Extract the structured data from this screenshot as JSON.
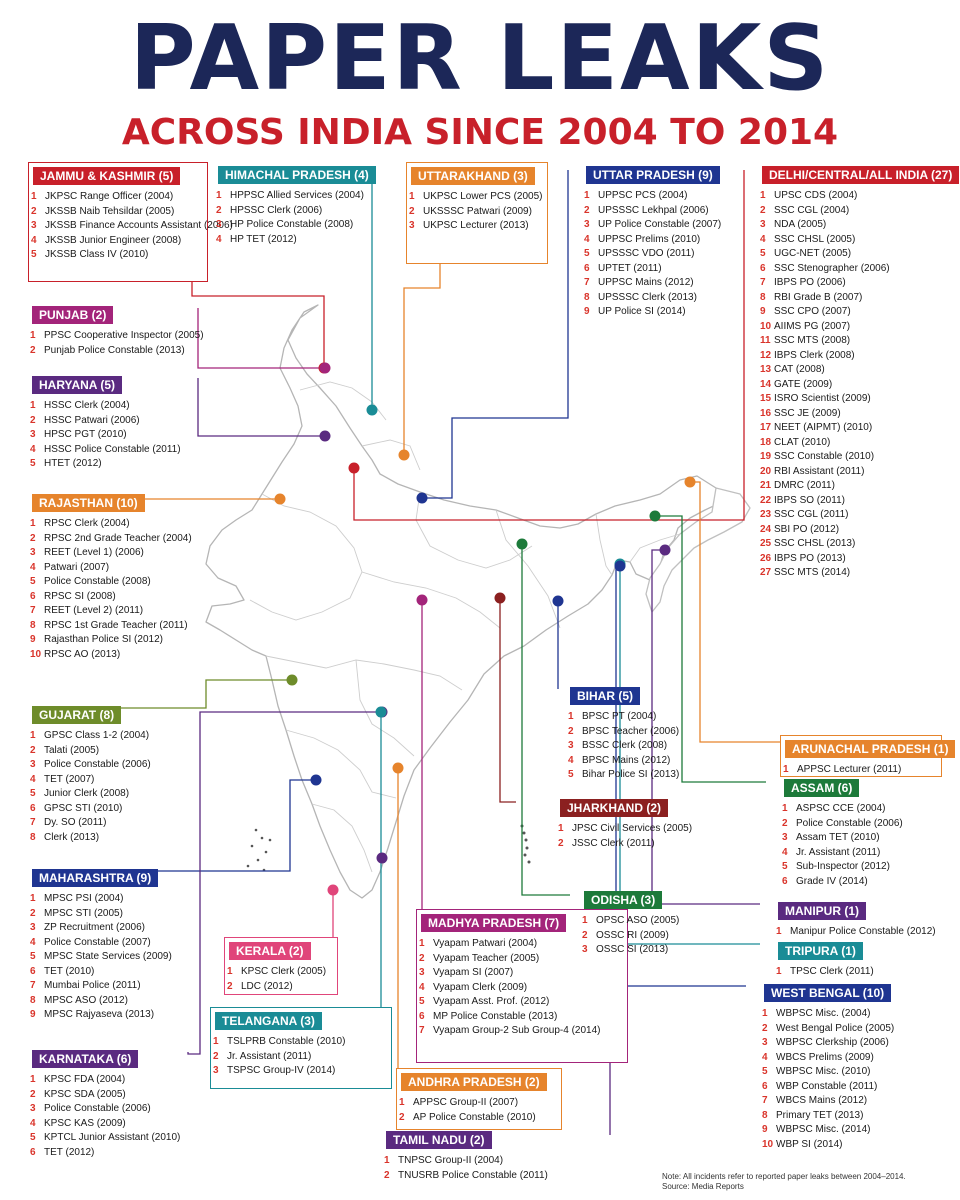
{
  "title": "PAPER LEAKS",
  "subtitle": "ACROSS INDIA SINCE 2004 TO 2014",
  "note": "Note: All incidents refer to reported paper leaks between 2004–2014.",
  "source": "Source: Media Reports",
  "colors": {
    "title": "#1c2758",
    "subtitle": "#c8202a",
    "map_outline": "#b8b8b8",
    "number": "#d9342b"
  },
  "states": [
    {
      "key": "jk",
      "header": "JAMMU & KASHMIR (5)",
      "color": "#c8202a",
      "items": [
        "JKPSC Range Officer (2004)",
        "JKSSB Naib Tehsildar (2005)",
        "JKSSB Finance Accounts Assistant (2006)",
        "JKSSB Junior Engineer (2008)",
        "JKSSB Class IV (2010)"
      ]
    },
    {
      "key": "hp",
      "header": "HIMACHAL PRADESH (4)",
      "color": "#1a8c96",
      "items": [
        "HPPSC Allied Services (2004)",
        "HPSSC Clerk (2006)",
        "HP Police Constable (2008)",
        "HP TET (2012)"
      ]
    },
    {
      "key": "uk",
      "header": "UTTARAKHAND (3)",
      "color": "#e6842c",
      "items": [
        "UKPSC Lower PCS (2005)",
        "UKSSSC Patwari (2009)",
        "UKPSC Lecturer (2013)"
      ]
    },
    {
      "key": "up",
      "header": "UTTAR PRADESH (9)",
      "color": "#1f3591",
      "items": [
        "UPPSC PCS (2004)",
        "UPSSSC Lekhpal (2006)",
        "UP Police Constable (2007)",
        "UPPSC Prelims (2010)",
        "UPSSSC VDO (2011)",
        "UPTET (2011)",
        "UPPSC Mains (2012)",
        "UPSSSC Clerk (2013)",
        "UP Police SI (2014)"
      ]
    },
    {
      "key": "delhi",
      "header": "DELHI/CENTRAL/ALL INDIA (27)",
      "color": "#c8202a",
      "items": [
        "UPSC CDS (2004)",
        "SSC CGL (2004)",
        "NDA (2005)",
        "SSC CHSL (2005)",
        "UGC-NET (2005)",
        "SSC Stenographer (2006)",
        "IBPS PO (2006)",
        "RBI Grade B (2007)",
        "SSC CPO (2007)",
        "AIIMS PG (2007)",
        "SSC MTS (2008)",
        "IBPS Clerk (2008)",
        "CAT (2008)",
        "GATE (2009)",
        "ISRO Scientist (2009)",
        "SSC JE (2009)",
        "NEET (AIPMT) (2010)",
        "CLAT (2010)",
        "SSC Constable (2010)",
        "RBI Assistant (2011)",
        "DMRC (2011)",
        "IBPS SO (2011)",
        "SSC CGL (2011)",
        "SBI PO (2012)",
        "SSC CHSL (2013)",
        "IBPS PO (2013)",
        "SSC MTS (2014)"
      ]
    },
    {
      "key": "punjab",
      "header": "PUNJAB (2)",
      "color": "#a3247a",
      "items": [
        "PPSC Cooperative Inspector (2005)",
        "Punjab Police Constable (2013)"
      ]
    },
    {
      "key": "haryana",
      "header": "HARYANA (5)",
      "color": "#5a2a80",
      "items": [
        "HSSC Clerk (2004)",
        "HSSC Patwari (2006)",
        "HPSC PGT (2010)",
        "HSSC Police Constable (2011)",
        "HTET (2012)"
      ]
    },
    {
      "key": "rajasthan",
      "header": "RAJASTHAN (10)",
      "color": "#e6842c",
      "items": [
        "RPSC Clerk (2004)",
        "RPSC 2nd Grade Teacher (2004)",
        "REET (Level 1) (2006)",
        "Patwari (2007)",
        "Police Constable (2008)",
        "RPSC SI (2008)",
        "REET (Level 2) (2011)",
        "RPSC 1st Grade Teacher (2011)",
        "Rajasthan Police SI (2012)",
        "RPSC AO (2013)"
      ]
    },
    {
      "key": "gujarat",
      "header": "GUJARAT (8)",
      "color": "#6e8c2a",
      "items": [
        "GPSC Class 1-2 (2004)",
        "Talati (2005)",
        "Police Constable (2006)",
        "TET (2007)",
        "Junior Clerk (2008)",
        "GPSC STI (2010)",
        "Dy. SO (2011)",
        "Clerk (2013)"
      ]
    },
    {
      "key": "maharashtra",
      "header": "MAHARASHTRA (9)",
      "color": "#1f3591",
      "items": [
        "MPSC PSI (2004)",
        "MPSC STI (2005)",
        "ZP Recruitment (2006)",
        "Police Constable (2007)",
        "MPSC State Services (2009)",
        "TET (2010)",
        "Mumbai Police (2011)",
        "MPSC ASO (2012)",
        "MPSC Rajyaseva (2013)"
      ]
    },
    {
      "key": "kerala",
      "header": "KERALA (2)",
      "color": "#e0457a",
      "items": [
        "KPSC Clerk (2005)",
        "LDC (2012)"
      ]
    },
    {
      "key": "karnataka",
      "header": "KARNATAKA (6)",
      "color": "#5a2a80",
      "items": [
        "KPSC FDA (2004)",
        "KPSC SDA (2005)",
        "Police Constable (2006)",
        "KPSC KAS (2009)",
        "KPTCL Junior Assistant (2010)",
        "TET (2012)"
      ]
    },
    {
      "key": "telangana",
      "header": "TELANGANA (3)",
      "color": "#1a8c96",
      "items": [
        "TSLPRB Constable (2010)",
        "Jr. Assistant (2011)",
        "TSPSC Group-IV (2014)"
      ]
    },
    {
      "key": "mp",
      "header": "MADHYA PRADESH (7)",
      "color": "#a3247a",
      "items": [
        "Vyapam Patwari (2004)",
        "Vyapam Teacher (2005)",
        "Vyapam SI (2007)",
        "Vyapam Clerk (2009)",
        "Vyapam Asst. Prof. (2012)",
        "MP Police Constable (2013)",
        "Vyapam Group-2 Sub Group-4 (2014)"
      ]
    },
    {
      "key": "ap",
      "header": "ANDHRA PRADESH (2)",
      "color": "#e6842c",
      "items": [
        "APPSC Group-II (2007)",
        "AP Police Constable (2010)"
      ]
    },
    {
      "key": "tn",
      "header": "TAMIL NADU (2)",
      "color": "#5a2a80",
      "items": [
        "TNPSC Group-II (2004)",
        "TNUSRB Police Constable (2011)"
      ]
    },
    {
      "key": "bihar",
      "header": "BIHAR (5)",
      "color": "#1f3591",
      "items": [
        "BPSC PT (2004)",
        "BPSC Teacher (2006)",
        "BSSC Clerk (2008)",
        "BPSC Mains (2012)",
        "Bihar Police SI (2013)"
      ]
    },
    {
      "key": "jharkhand",
      "header": "JHARKHAND (2)",
      "color": "#8b2020",
      "items": [
        "JPSC Civil Services (2005)",
        "JSSC Clerk (2011)"
      ]
    },
    {
      "key": "odisha",
      "header": "ODISHA (3)",
      "color": "#1d7a3a",
      "items": [
        "OPSC ASO (2005)",
        "OSSC RI (2009)",
        "OSSC SI (2013)"
      ]
    },
    {
      "key": "arunachal",
      "header": "ARUNACHAL PRADESH (1)",
      "color": "#e6842c",
      "items": [
        "APPSC Lecturer (2011)"
      ]
    },
    {
      "key": "assam",
      "header": "ASSAM (6)",
      "color": "#1d7a3a",
      "items": [
        "ASPSC CCE (2004)",
        "Police Constable (2006)",
        "Assam TET (2010)",
        "Jr. Assistant (2011)",
        "Sub-Inspector (2012)",
        "Grade IV (2014)"
      ]
    },
    {
      "key": "manipur",
      "header": "MANIPUR (1)",
      "color": "#5a2a80",
      "items": [
        "Manipur Police Constable (2012)"
      ]
    },
    {
      "key": "tripura",
      "header": "TRIPURA (1)",
      "color": "#1a8c96",
      "items": [
        "TPSC Clerk (2011)"
      ]
    },
    {
      "key": "wb",
      "header": "WEST BENGAL (10)",
      "color": "#1f3591",
      "items": [
        "WBPSC Misc. (2004)",
        "West Bengal Police (2005)",
        "WBPSC Clerkship (2006)",
        "WBCS Prelims (2009)",
        "WBPSC Misc. (2010)",
        "WBP Constable (2011)",
        "WBCS Mains (2012)",
        "Primary TET (2013)",
        "WBPSC Misc. (2014)",
        "WBP SI (2014)"
      ]
    }
  ]
}
